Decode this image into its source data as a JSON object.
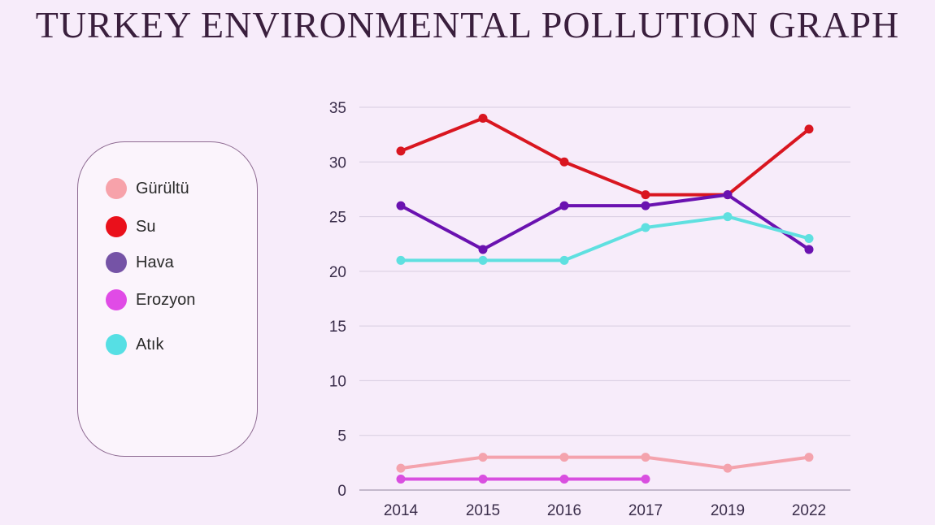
{
  "title": "TURKEY ENVIRONMENTAL POLLUTION GRAPH",
  "chart_data": {
    "type": "line",
    "title": "TURKEY ENVIRONMENTAL POLLUTION GRAPH",
    "xlabel": "",
    "ylabel": "",
    "categories": [
      "2014",
      "2015",
      "2016",
      "2017",
      "2019",
      "2022"
    ],
    "ylim": [
      0,
      35
    ],
    "yticks": [
      0,
      5,
      10,
      15,
      20,
      25,
      30,
      35
    ],
    "grid": true,
    "legend_placement": "left",
    "series": [
      {
        "name": "Gürültü",
        "color": "#f4a3ad",
        "values": [
          2,
          3,
          3,
          3,
          2,
          3
        ]
      },
      {
        "name": "Su",
        "color": "#d91620",
        "values": [
          31,
          34,
          30,
          27,
          27,
          33
        ]
      },
      {
        "name": "Hava",
        "color": "#6a12b0",
        "values": [
          26,
          22,
          26,
          26,
          27,
          22
        ]
      },
      {
        "name": "Erozyon",
        "color": "#d94fe0",
        "values": [
          1,
          1,
          1,
          1,
          null,
          null
        ]
      },
      {
        "name": "Atık",
        "color": "#5fe0e0",
        "values": [
          21,
          21,
          21,
          24,
          25,
          23
        ]
      }
    ]
  },
  "legend": {
    "items": [
      {
        "label": "Gürültü",
        "color": "#f7a2aa"
      },
      {
        "label": "Su",
        "color": "#ea101b"
      },
      {
        "label": "Hava",
        "color": "#7553a6"
      },
      {
        "label": "Erozyon",
        "color": "#e04be6"
      },
      {
        "label": "Atık",
        "color": "#56dfe4"
      }
    ]
  }
}
